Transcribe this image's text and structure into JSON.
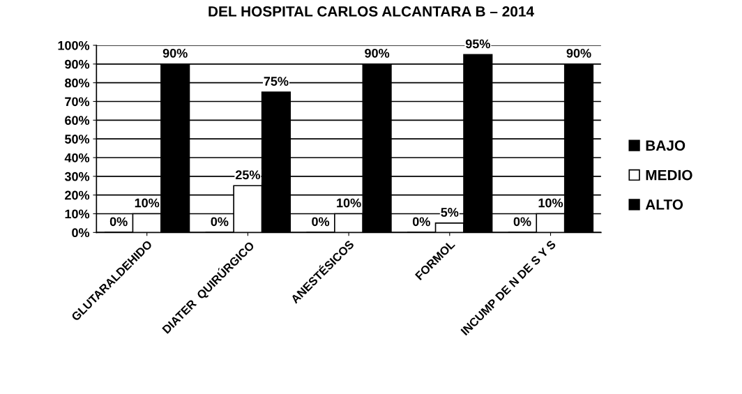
{
  "chart_data": {
    "type": "bar",
    "title": "DEL HOSPITAL CARLOS ALCANTARA B – 2014",
    "categories": [
      "GLUTARALDEHIDO",
      "DIATER  QUIRÚRGICO",
      "ANESTÉSICOS",
      "FORMOL",
      "INCUMP DE N DE S Y S"
    ],
    "series": [
      {
        "name": "BAJO",
        "color": "#000000",
        "values": [
          0,
          0,
          0,
          0,
          0
        ],
        "value_labels": [
          "0%",
          "0%",
          "0%",
          "0%",
          "0%"
        ]
      },
      {
        "name": "MEDIO",
        "color": "#ffffff",
        "values": [
          10,
          25,
          10,
          5,
          10
        ],
        "value_labels": [
          "10%",
          "25%",
          "10%",
          "5%",
          "10%"
        ]
      },
      {
        "name": "ALTO",
        "color": "#000000",
        "values": [
          90,
          75,
          90,
          95,
          90
        ],
        "value_labels": [
          "90%",
          "75%",
          "90%",
          "95%",
          "90%"
        ]
      }
    ],
    "ylim": [
      0,
      100
    ],
    "yticks": [
      {
        "value": 0,
        "label": "0%"
      },
      {
        "value": 10,
        "label": "10%"
      },
      {
        "value": 20,
        "label": "20%"
      },
      {
        "value": 30,
        "label": "30%"
      },
      {
        "value": 40,
        "label": "40%"
      },
      {
        "value": 50,
        "label": "50%"
      },
      {
        "value": 60,
        "label": "60%"
      },
      {
        "value": 70,
        "label": "70%"
      },
      {
        "value": 80,
        "label": "80%"
      },
      {
        "value": 90,
        "label": "90%"
      },
      {
        "value": 100,
        "label": "100%"
      }
    ],
    "grid": "y",
    "legend": "right"
  }
}
